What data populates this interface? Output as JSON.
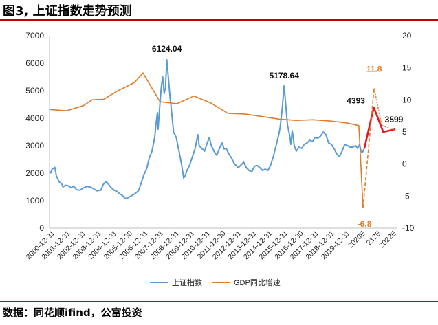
{
  "header": {
    "title": "图3, 上证指数走势预测"
  },
  "footer": {
    "source": "数据：同花顺ifind，公富投资"
  },
  "chart_data": {
    "type": "line",
    "left_axis": {
      "ticks": [
        0,
        1000,
        2000,
        3000,
        4000,
        5000,
        6000,
        7000
      ],
      "range": [
        0,
        7000
      ]
    },
    "right_axis": {
      "ticks": [
        -10,
        -5,
        0,
        5,
        10,
        15,
        20
      ],
      "range": [
        -10,
        20
      ]
    },
    "x_tick_labels": [
      "2000-12-31",
      "2001-12-31",
      "2002-12-31",
      "2003-12-31",
      "2004-12-31",
      "2005-12-30",
      "2006-12-31",
      "2007-12-31",
      "2008-12-31",
      "2009-12-31",
      "2010-12-31",
      "2011-12-30",
      "2012-12-31",
      "2013-12-31",
      "2014-12-31",
      "2015-12-31",
      "2016-12-30",
      "2017-12-31",
      "2018-12-31",
      "2019-12-31",
      "2020E",
      "212E",
      "2022E"
    ],
    "legend": {
      "position": "bottom",
      "items": [
        {
          "name": "上证指数",
          "color": "#5b9bd5"
        },
        {
          "name": "GDP同比增速",
          "color": "#e07b2a"
        }
      ]
    },
    "annotations": {
      "peak_2007": "6124.04",
      "peak_2015": "5178.64",
      "forecast_2020": "4393",
      "forecast_2022": "3599",
      "gdp_high": "11.8",
      "gdp_low": "-6.8"
    },
    "series": [
      {
        "name": "上证指数",
        "axis": "left",
        "color": "#5b9bd5",
        "points": [
          [
            0.0,
            2073
          ],
          [
            0.1,
            2010
          ],
          [
            0.2,
            2150
          ],
          [
            0.3,
            2180
          ],
          [
            0.4,
            2210
          ],
          [
            0.5,
            1920
          ],
          [
            0.6,
            1800
          ],
          [
            0.7,
            1700
          ],
          [
            0.8,
            1650
          ],
          [
            0.9,
            1620
          ],
          [
            1.0,
            1500
          ],
          [
            1.2,
            1560
          ],
          [
            1.4,
            1540
          ],
          [
            1.6,
            1470
          ],
          [
            1.8,
            1530
          ],
          [
            2.0,
            1400
          ],
          [
            2.25,
            1380
          ],
          [
            2.5,
            1460
          ],
          [
            2.75,
            1520
          ],
          [
            3.0,
            1500
          ],
          [
            3.25,
            1440
          ],
          [
            3.5,
            1360
          ],
          [
            3.8,
            1380
          ],
          [
            4.0,
            1600
          ],
          [
            4.2,
            1700
          ],
          [
            4.4,
            1580
          ],
          [
            4.6,
            1460
          ],
          [
            4.8,
            1380
          ],
          [
            5.0,
            1340
          ],
          [
            5.2,
            1250
          ],
          [
            5.4,
            1190
          ],
          [
            5.6,
            1080
          ],
          [
            5.8,
            1100
          ],
          [
            6.0,
            1160
          ],
          [
            6.3,
            1240
          ],
          [
            6.6,
            1360
          ],
          [
            6.8,
            1640
          ],
          [
            7.0,
            1950
          ],
          [
            7.2,
            2150
          ],
          [
            7.4,
            2550
          ],
          [
            7.6,
            2800
          ],
          [
            7.8,
            3300
          ],
          [
            7.9,
            3800
          ],
          [
            8.0,
            4200
          ],
          [
            8.05,
            3600
          ],
          [
            8.2,
            4600
          ],
          [
            8.3,
            5200
          ],
          [
            8.4,
            5500
          ],
          [
            8.5,
            4900
          ],
          [
            8.6,
            5100
          ],
          [
            8.7,
            6124
          ],
          [
            8.85,
            5300
          ],
          [
            8.95,
            4700
          ],
          [
            9.0,
            4500
          ],
          [
            9.2,
            3500
          ],
          [
            9.4,
            3300
          ],
          [
            9.6,
            2800
          ],
          [
            9.8,
            2300
          ],
          [
            9.95,
            1820
          ],
          [
            10.05,
            1900
          ],
          [
            10.2,
            2100
          ],
          [
            10.4,
            2300
          ],
          [
            10.6,
            2600
          ],
          [
            10.8,
            2900
          ],
          [
            11.0,
            3400
          ],
          [
            11.1,
            3000
          ],
          [
            11.3,
            2900
          ],
          [
            11.5,
            2800
          ],
          [
            11.7,
            3100
          ],
          [
            11.85,
            3300
          ],
          [
            12.0,
            3000
          ],
          [
            12.2,
            2800
          ],
          [
            12.4,
            2650
          ],
          [
            12.6,
            2900
          ],
          [
            12.8,
            3100
          ],
          [
            12.95,
            2880
          ],
          [
            13.1,
            2900
          ],
          [
            13.3,
            2700
          ],
          [
            13.5,
            2550
          ],
          [
            13.7,
            2350
          ],
          [
            13.9,
            2250
          ],
          [
            14.0,
            2200
          ],
          [
            14.2,
            2300
          ],
          [
            14.4,
            2400
          ],
          [
            14.6,
            2200
          ],
          [
            14.8,
            2100
          ],
          [
            15.0,
            2050
          ],
          [
            15.2,
            2250
          ],
          [
            15.4,
            2280
          ],
          [
            15.6,
            2200
          ],
          [
            15.8,
            2100
          ],
          [
            16.0,
            2150
          ],
          [
            16.2,
            2100
          ],
          [
            16.4,
            2300
          ],
          [
            16.6,
            2600
          ],
          [
            16.8,
            3000
          ],
          [
            17.0,
            3400
          ],
          [
            17.1,
            3650
          ],
          [
            17.25,
            4300
          ],
          [
            17.4,
            5178
          ],
          [
            17.55,
            4300
          ],
          [
            17.65,
            3750
          ],
          [
            17.8,
            3400
          ],
          [
            17.9,
            3050
          ],
          [
            18.0,
            3550
          ],
          [
            18.15,
            3000
          ],
          [
            18.3,
            2800
          ],
          [
            18.5,
            2950
          ],
          [
            18.7,
            2900
          ],
          [
            18.9,
            3050
          ],
          [
            19.1,
            3100
          ],
          [
            19.3,
            3200
          ],
          [
            19.5,
            3150
          ],
          [
            19.7,
            3300
          ],
          [
            19.9,
            3270
          ],
          [
            20.1,
            3350
          ],
          [
            20.3,
            3500
          ],
          [
            20.5,
            3400
          ],
          [
            20.7,
            3100
          ],
          [
            20.9,
            3050
          ],
          [
            21.1,
            2900
          ],
          [
            21.3,
            2700
          ],
          [
            21.5,
            2600
          ],
          [
            21.7,
            2800
          ],
          [
            21.9,
            3050
          ],
          [
            22.1,
            3000
          ],
          [
            22.3,
            2950
          ],
          [
            22.5,
            2950
          ],
          [
            22.7,
            3000
          ],
          [
            22.85,
            2900
          ],
          [
            23.0,
            3050
          ],
          [
            23.1,
            2800
          ],
          [
            23.2,
            2750
          ],
          [
            23.35,
            2900
          ]
        ]
      },
      {
        "name": "上证指数预测",
        "axis": "left",
        "color": "#e8161b",
        "points": [
          [
            23.35,
            2900
          ],
          [
            24.05,
            4393
          ],
          [
            24.75,
            3500
          ],
          [
            25.65,
            3599
          ]
        ]
      },
      {
        "name": "GDP同比增速",
        "axis": "right",
        "color": "#e07b2a",
        "points": [
          [
            0.0,
            8.5
          ],
          [
            2.0,
            8.3
          ],
          [
            4.0,
            9.1
          ],
          [
            5.0,
            10.0
          ],
          [
            6.4,
            10.1
          ],
          [
            8.0,
            11.4
          ],
          [
            10.0,
            12.7
          ],
          [
            11.0,
            14.2
          ],
          [
            13.0,
            9.7
          ],
          [
            15.0,
            9.4
          ],
          [
            17.0,
            10.6
          ],
          [
            19.0,
            9.5
          ],
          [
            21.0,
            7.9
          ],
          [
            23.0,
            7.8
          ],
          [
            25.0,
            7.4
          ],
          [
            27.0,
            7.0
          ],
          [
            29.0,
            6.8
          ],
          [
            31.0,
            6.9
          ],
          [
            33.0,
            6.7
          ],
          [
            35.0,
            6.4
          ],
          [
            36.4,
            6.0
          ],
          [
            36.9,
            -6.8
          ]
        ]
      },
      {
        "name": "GDP同比增速预测",
        "axis": "right",
        "color": "#e07b2a",
        "dashed": true,
        "points": [
          [
            36.9,
            -6.8
          ],
          [
            38.2,
            11.8
          ],
          [
            39.1,
            6.0
          ],
          [
            40.7,
            5.3
          ]
        ]
      }
    ]
  }
}
